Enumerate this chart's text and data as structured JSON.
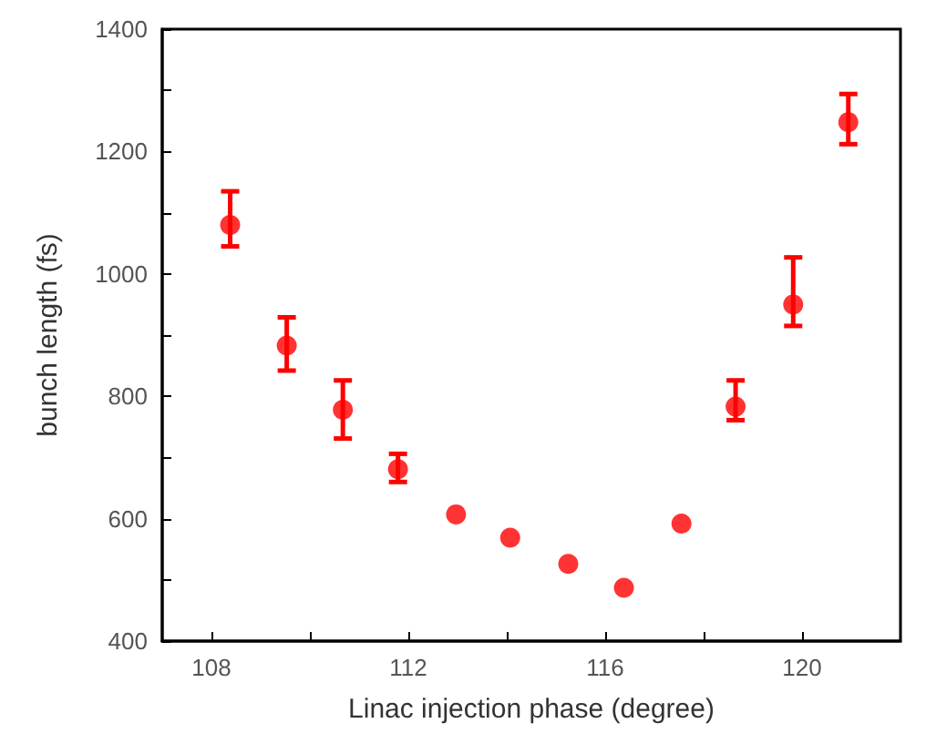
{
  "chart_data": {
    "type": "scatter",
    "xlabel": "Linac injection phase (degree)",
    "ylabel": "bunch length (fs)",
    "x": [
      108.38,
      109.53,
      110.67,
      111.79,
      112.97,
      114.07,
      115.25,
      116.38,
      117.55,
      118.65,
      119.82,
      120.94
    ],
    "values": [
      1080,
      883,
      778,
      681,
      607,
      569,
      526,
      487,
      592,
      783,
      950,
      1248
    ],
    "errors": [
      [
        1045,
        1135
      ],
      [
        842,
        929
      ],
      [
        731,
        826
      ],
      [
        660,
        706
      ],
      null,
      null,
      null,
      null,
      null,
      [
        761,
        826
      ],
      [
        915,
        1027
      ],
      [
        1212,
        1294
      ]
    ],
    "color": "#ff0000",
    "marker": "circle",
    "grid": false,
    "xlim": [
      107,
      122
    ],
    "xticks": [
      108,
      {
        "value": 110,
        "label": null
      },
      112,
      {
        "value": 114,
        "label": null
      },
      116,
      {
        "value": 118,
        "label": null
      },
      120
    ],
    "ylim": [
      400,
      1400
    ],
    "yticks": [
      400,
      {
        "value": 500,
        "label": null
      },
      600,
      {
        "value": 700,
        "label": null
      },
      800,
      {
        "value": 900,
        "label": null
      },
      1000,
      {
        "value": 1100,
        "label": null
      },
      1200,
      {
        "value": 1300,
        "label": null
      },
      1400
    ]
  }
}
